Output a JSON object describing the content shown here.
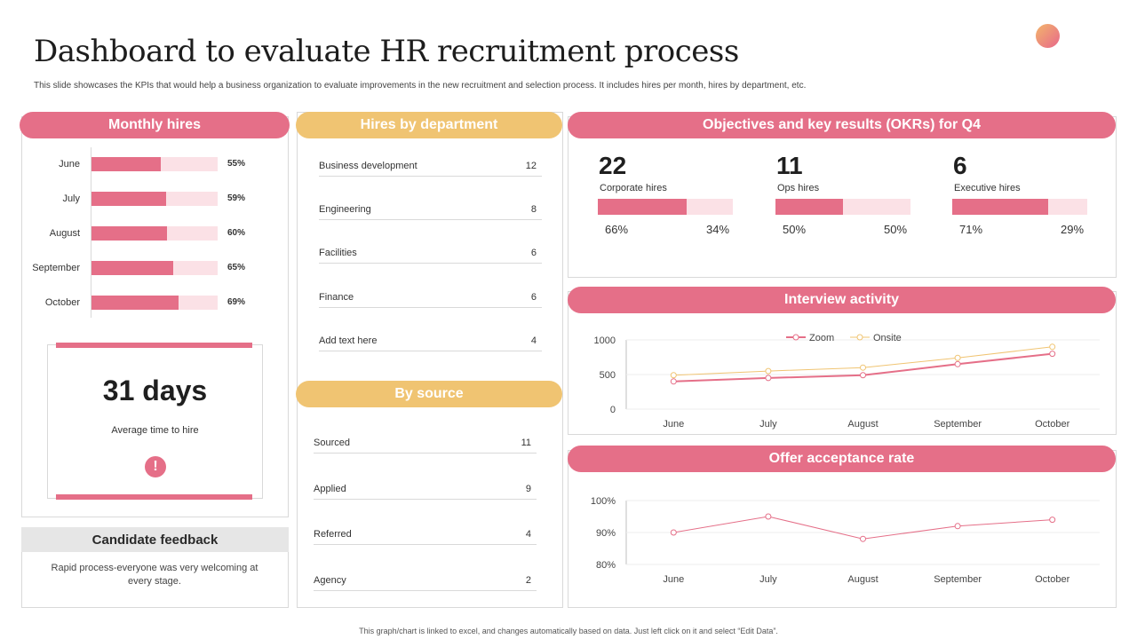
{
  "title": "Dashboard to evaluate HR recruitment process",
  "subtitle": "This slide showcases the KPIs that would help a business organization to evaluate improvements in the new recruitment and selection process. It includes hires per month, hires by department, etc.",
  "footer": "This graph/chart is linked to excel, and changes automatically based on data. Just left click on it and select “Edit Data”.",
  "colors": {
    "accent": "#e56f88",
    "gold": "#f0c472",
    "light_pink": "#fbe1e6",
    "onsite_line": "#f0c472",
    "zoom_line": "#e56f88"
  },
  "monthly_hires": {
    "title": "Monthly hires",
    "rows": [
      {
        "label": "June",
        "pct_label": "55%",
        "value": 0.55
      },
      {
        "label": "July",
        "pct_label": "59%",
        "value": 0.59
      },
      {
        "label": "August",
        "pct_label": "60%",
        "value": 0.6
      },
      {
        "label": "September",
        "pct_label": "65%",
        "value": 0.65
      },
      {
        "label": "October",
        "pct_label": "69%",
        "value": 0.69
      }
    ],
    "time_to_hire_value": "31 days",
    "time_to_hire_label": "Average time to hire",
    "alert_icon": "!"
  },
  "feedback": {
    "title": "Candidate feedback",
    "text": "Rapid process-everyone was very welcoming at every stage."
  },
  "hires_by_department": {
    "title": "Hires by department",
    "rows": [
      {
        "label": "Business development",
        "value": "12"
      },
      {
        "label": "Engineering",
        "value": "8"
      },
      {
        "label": "Facilities",
        "value": "6"
      },
      {
        "label": "Finance",
        "value": "6"
      },
      {
        "label": "Add text here",
        "value": "4"
      }
    ]
  },
  "by_source": {
    "title": "By source",
    "rows": [
      {
        "label": "Sourced",
        "value": "11"
      },
      {
        "label": "Applied",
        "value": "9"
      },
      {
        "label": "Referred",
        "value": "4"
      },
      {
        "label": "Agency",
        "value": "2"
      }
    ]
  },
  "okrs": {
    "title": "Objectives and key results (OKRs) for Q4",
    "items": [
      {
        "number": "22",
        "label": "Corporate hires",
        "done": 0.66,
        "done_label": "66%",
        "remaining_label": "34%"
      },
      {
        "number": "11",
        "label": "Ops hires",
        "done": 0.5,
        "done_label": "50%",
        "remaining_label": "50%"
      },
      {
        "number": "6",
        "label": "Executive hires",
        "done": 0.71,
        "done_label": "71%",
        "remaining_label": "29%"
      }
    ]
  },
  "chart_data": [
    {
      "type": "line",
      "title": "Interview activity",
      "categories": [
        "June",
        "July",
        "August",
        "September",
        "October"
      ],
      "series": [
        {
          "name": "Zoom",
          "values": [
            400,
            450,
            490,
            650,
            800
          ]
        },
        {
          "name": "Onsite",
          "values": [
            490,
            550,
            600,
            740,
            900
          ]
        }
      ],
      "yticks": [
        "1000",
        "500",
        "0"
      ],
      "ylim": [
        0,
        1000
      ],
      "legend": "top-center"
    },
    {
      "type": "line",
      "title": "Offer acceptance rate",
      "categories": [
        "June",
        "July",
        "August",
        "September",
        "October"
      ],
      "series": [
        {
          "values": [
            90,
            95,
            88,
            92,
            94
          ]
        }
      ],
      "yticks": [
        "100%",
        "90%",
        "80%"
      ],
      "ylim": [
        80,
        100
      ]
    }
  ]
}
